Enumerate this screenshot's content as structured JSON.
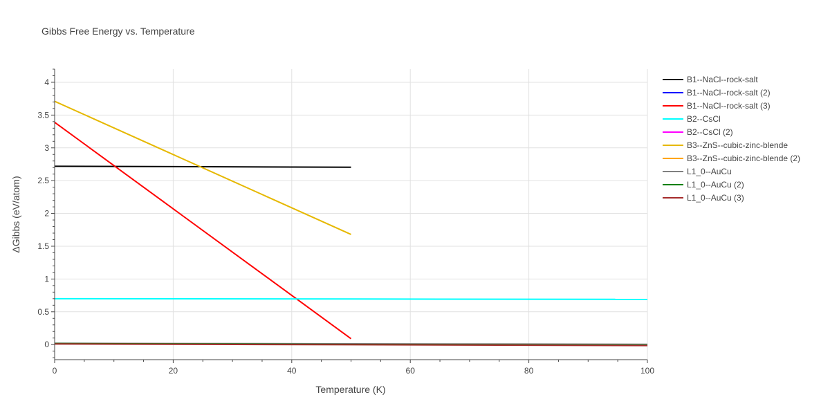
{
  "chart_data": {
    "type": "line",
    "title": "Gibbs Free Energy vs. Temperature",
    "xlabel": "Temperature (K)",
    "ylabel": "ΔGibbs (eV/atom)",
    "xlim": [
      0,
      100
    ],
    "ylim": [
      -0.23,
      4.2
    ],
    "xticks": [
      0,
      20,
      40,
      60,
      80,
      100
    ],
    "yticks": [
      0,
      0.5,
      1,
      1.5,
      2,
      2.5,
      3,
      3.5,
      4
    ],
    "xtick_labels": [
      "0",
      "20",
      "40",
      "60",
      "80",
      "100"
    ],
    "ytick_labels": [
      "0",
      "0.5",
      "1",
      "1.5",
      "2",
      "2.5",
      "3",
      "3.5",
      "4"
    ],
    "grid": true,
    "legend_position": "right",
    "series": [
      {
        "name": "B1--NaCl--rock-salt",
        "color": "#000000",
        "x": [
          0,
          50
        ],
        "y": [
          2.72,
          2.705
        ]
      },
      {
        "name": "B1--NaCl--rock-salt (2)",
        "color": "#0000ff",
        "x": [],
        "y": []
      },
      {
        "name": "B1--NaCl--rock-salt (3)",
        "color": "#ff0000",
        "x": [
          0,
          50
        ],
        "y": [
          3.39,
          0.09
        ]
      },
      {
        "name": "B2--CsCl",
        "color": "#00ffff",
        "x": [
          0,
          100
        ],
        "y": [
          0.7,
          0.69
        ]
      },
      {
        "name": "B2--CsCl (2)",
        "color": "#ff00ff",
        "x": [],
        "y": []
      },
      {
        "name": "B3--ZnS--cubic-zinc-blende",
        "color": "#e6b800",
        "x": [
          0,
          50
        ],
        "y": [
          3.71,
          1.68
        ]
      },
      {
        "name": "B3--ZnS--cubic-zinc-blende (2)",
        "color": "#ffa500",
        "x": [],
        "y": []
      },
      {
        "name": "L1_0--AuCu",
        "color": "#808080",
        "x": [
          0,
          100
        ],
        "y": [
          0.02,
          0.005
        ]
      },
      {
        "name": "L1_0--AuCu (2)",
        "color": "#008000",
        "x": [
          0,
          100
        ],
        "y": [
          0.015,
          -0.01
        ]
      },
      {
        "name": "L1_0--AuCu (3)",
        "color": "#a52a2a",
        "x": [
          0,
          100
        ],
        "y": [
          0.01,
          -0.015
        ]
      }
    ]
  }
}
